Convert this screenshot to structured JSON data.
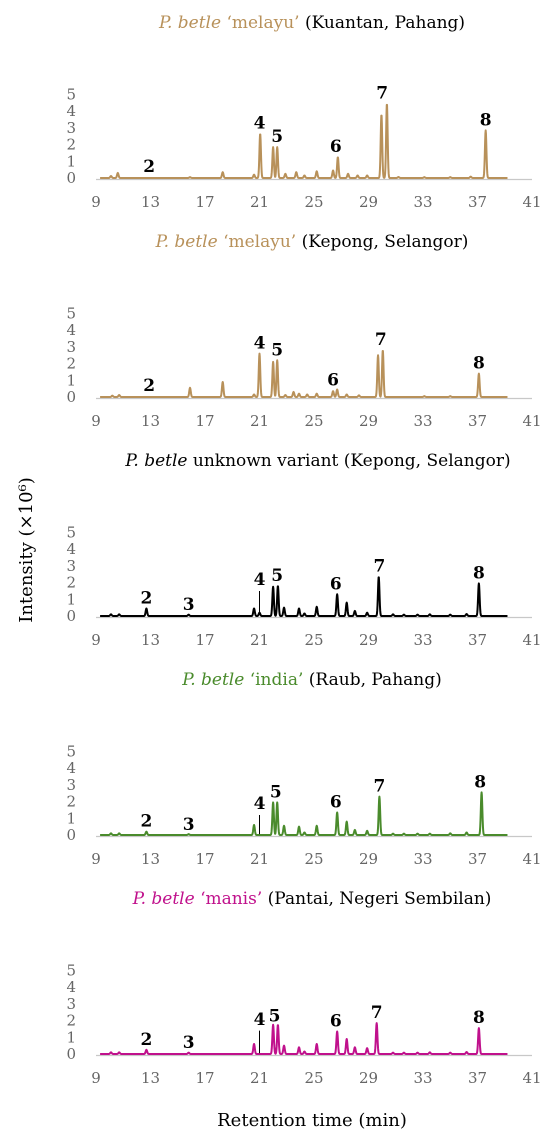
{
  "chart_data": {
    "type": "line",
    "xlabel": "Retention time (min)",
    "ylabel": "Intensity (×10⁶)",
    "xticks": [
      9,
      13,
      17,
      21,
      25,
      29,
      33,
      37,
      41
    ],
    "yticks": [
      0,
      1,
      2,
      3,
      4,
      5
    ],
    "xlim": [
      9,
      41
    ],
    "ylim": [
      0,
      5
    ],
    "panels": [
      {
        "title_species": "P. betle",
        "title_variant": "‘melayu’",
        "title_location": "(Kuantan, Pahang)",
        "color": "#B8915A",
        "species_color": "#B8915A",
        "x_end": 39.2,
        "peaks": [
          {
            "x": 10.1,
            "y": 0.12
          },
          {
            "x": 10.6,
            "y": 0.3
          },
          {
            "x": 15.9,
            "y": 0.05
          },
          {
            "x": 18.3,
            "y": 0.35
          },
          {
            "x": 20.6,
            "y": 0.2
          },
          {
            "x": 21.05,
            "y": 2.65
          },
          {
            "x": 22.0,
            "y": 1.85
          },
          {
            "x": 22.3,
            "y": 1.85
          },
          {
            "x": 22.9,
            "y": 0.25
          },
          {
            "x": 23.7,
            "y": 0.35
          },
          {
            "x": 24.3,
            "y": 0.15
          },
          {
            "x": 25.2,
            "y": 0.4
          },
          {
            "x": 26.4,
            "y": 0.45
          },
          {
            "x": 26.75,
            "y": 1.25
          },
          {
            "x": 27.5,
            "y": 0.25
          },
          {
            "x": 28.2,
            "y": 0.15
          },
          {
            "x": 28.9,
            "y": 0.15
          },
          {
            "x": 29.95,
            "y": 3.8
          },
          {
            "x": 30.35,
            "y": 4.45
          },
          {
            "x": 31.2,
            "y": 0.06
          },
          {
            "x": 33.1,
            "y": 0.05
          },
          {
            "x": 35.0,
            "y": 0.05
          },
          {
            "x": 36.5,
            "y": 0.08
          },
          {
            "x": 37.6,
            "y": 2.85
          }
        ],
        "labels": [
          {
            "text": "2",
            "x": 12.9,
            "y": 0.35
          },
          {
            "text": "4",
            "x": 21.0,
            "y": 2.95
          },
          {
            "text": "5",
            "x": 22.3,
            "y": 2.15
          },
          {
            "text": "6",
            "x": 26.6,
            "y": 1.55
          },
          {
            "text": "7",
            "x": 30.0,
            "y": 4.75
          },
          {
            "text": "8",
            "x": 37.6,
            "y": 3.15
          }
        ]
      },
      {
        "title_species": "P. betle",
        "title_variant": "‘melayu’",
        "title_location": "(Kepong, Selangor)",
        "color": "#B8915A",
        "species_color": "#B8915A",
        "x_end": 39.2,
        "peaks": [
          {
            "x": 10.2,
            "y": 0.08
          },
          {
            "x": 10.7,
            "y": 0.12
          },
          {
            "x": 15.9,
            "y": 0.55
          },
          {
            "x": 18.3,
            "y": 0.9
          },
          {
            "x": 20.6,
            "y": 0.15
          },
          {
            "x": 21.0,
            "y": 2.6
          },
          {
            "x": 22.0,
            "y": 2.1
          },
          {
            "x": 22.3,
            "y": 2.2
          },
          {
            "x": 22.9,
            "y": 0.12
          },
          {
            "x": 23.5,
            "y": 0.3
          },
          {
            "x": 23.9,
            "y": 0.2
          },
          {
            "x": 24.5,
            "y": 0.15
          },
          {
            "x": 25.2,
            "y": 0.2
          },
          {
            "x": 26.4,
            "y": 0.35
          },
          {
            "x": 26.7,
            "y": 0.45
          },
          {
            "x": 27.4,
            "y": 0.15
          },
          {
            "x": 28.3,
            "y": 0.1
          },
          {
            "x": 29.7,
            "y": 2.5
          },
          {
            "x": 30.05,
            "y": 2.8
          },
          {
            "x": 33.1,
            "y": 0.05
          },
          {
            "x": 35.0,
            "y": 0.05
          },
          {
            "x": 37.1,
            "y": 1.4
          }
        ],
        "labels": [
          {
            "text": "2",
            "x": 12.9,
            "y": 0.35
          },
          {
            "text": "4",
            "x": 21.0,
            "y": 2.9
          },
          {
            "text": "5",
            "x": 22.3,
            "y": 2.5
          },
          {
            "text": "6",
            "x": 26.4,
            "y": 0.7
          },
          {
            "text": "7",
            "x": 29.9,
            "y": 3.1
          },
          {
            "text": "8",
            "x": 37.1,
            "y": 1.7
          }
        ]
      },
      {
        "title_species": "P. betle",
        "title_variant": "unknown variant",
        "title_location": "(Kepong, Selangor)",
        "color": "#000000",
        "species_color": "#000000",
        "x_end": 39.2,
        "peaks": [
          {
            "x": 10.1,
            "y": 0.1
          },
          {
            "x": 10.7,
            "y": 0.1
          },
          {
            "x": 12.7,
            "y": 0.45
          },
          {
            "x": 15.8,
            "y": 0.08
          },
          {
            "x": 20.6,
            "y": 0.45
          },
          {
            "x": 21.0,
            "y": 0.2
          },
          {
            "x": 22.0,
            "y": 1.75
          },
          {
            "x": 22.35,
            "y": 1.8
          },
          {
            "x": 22.8,
            "y": 0.5
          },
          {
            "x": 23.9,
            "y": 0.45
          },
          {
            "x": 24.3,
            "y": 0.15
          },
          {
            "x": 25.2,
            "y": 0.55
          },
          {
            "x": 26.7,
            "y": 1.3
          },
          {
            "x": 27.4,
            "y": 0.8
          },
          {
            "x": 28.0,
            "y": 0.3
          },
          {
            "x": 28.9,
            "y": 0.2
          },
          {
            "x": 29.75,
            "y": 2.35
          },
          {
            "x": 30.8,
            "y": 0.1
          },
          {
            "x": 31.6,
            "y": 0.08
          },
          {
            "x": 32.6,
            "y": 0.08
          },
          {
            "x": 33.5,
            "y": 0.1
          },
          {
            "x": 35.0,
            "y": 0.08
          },
          {
            "x": 36.2,
            "y": 0.12
          },
          {
            "x": 37.1,
            "y": 1.95
          }
        ],
        "labels": [
          {
            "text": "2",
            "x": 12.7,
            "y": 0.75
          },
          {
            "text": "3",
            "x": 15.8,
            "y": 0.35
          },
          {
            "text": "4",
            "x": 21.0,
            "y": 1.85
          },
          {
            "text": "5",
            "x": 22.3,
            "y": 2.1
          },
          {
            "text": "6",
            "x": 26.6,
            "y": 1.6
          },
          {
            "text": "7",
            "x": 29.8,
            "y": 2.65
          },
          {
            "text": "8",
            "x": 37.1,
            "y": 2.25
          }
        ],
        "leaders": [
          {
            "x": 21.0,
            "y1": 0.05,
            "y2": 1.5
          }
        ]
      },
      {
        "title_species": "P. betle",
        "title_variant": "‘india’",
        "title_location": "(Raub, Pahang)",
        "color": "#4A8B2C",
        "species_color": "#4A8B2C",
        "x_end": 39.2,
        "peaks": [
          {
            "x": 10.1,
            "y": 0.1
          },
          {
            "x": 10.7,
            "y": 0.1
          },
          {
            "x": 12.7,
            "y": 0.2
          },
          {
            "x": 15.8,
            "y": 0.05
          },
          {
            "x": 20.6,
            "y": 0.6
          },
          {
            "x": 22.0,
            "y": 1.95
          },
          {
            "x": 22.3,
            "y": 1.95
          },
          {
            "x": 22.8,
            "y": 0.55
          },
          {
            "x": 23.9,
            "y": 0.5
          },
          {
            "x": 24.3,
            "y": 0.15
          },
          {
            "x": 25.2,
            "y": 0.55
          },
          {
            "x": 26.7,
            "y": 1.35
          },
          {
            "x": 27.4,
            "y": 0.8
          },
          {
            "x": 28.0,
            "y": 0.3
          },
          {
            "x": 28.9,
            "y": 0.25
          },
          {
            "x": 29.8,
            "y": 2.3
          },
          {
            "x": 30.8,
            "y": 0.08
          },
          {
            "x": 31.6,
            "y": 0.08
          },
          {
            "x": 32.6,
            "y": 0.08
          },
          {
            "x": 33.5,
            "y": 0.08
          },
          {
            "x": 35.0,
            "y": 0.1
          },
          {
            "x": 36.2,
            "y": 0.15
          },
          {
            "x": 37.3,
            "y": 2.55
          }
        ],
        "labels": [
          {
            "text": "2",
            "x": 12.7,
            "y": 0.5
          },
          {
            "text": "3",
            "x": 15.8,
            "y": 0.3
          },
          {
            "text": "4",
            "x": 21.0,
            "y": 1.55
          },
          {
            "text": "5",
            "x": 22.2,
            "y": 2.25
          },
          {
            "text": "6",
            "x": 26.6,
            "y": 1.65
          },
          {
            "text": "7",
            "x": 29.8,
            "y": 2.6
          },
          {
            "text": "8",
            "x": 37.2,
            "y": 2.85
          }
        ],
        "leaders": [
          {
            "x": 21.0,
            "y1": 0.05,
            "y2": 1.2
          }
        ]
      },
      {
        "title_species": "P. betle",
        "title_variant": "‘manis’",
        "title_location": "(Pantai, Negeri Sembilan)",
        "color": "#C0118C",
        "species_color": "#C0118C",
        "x_end": 39.2,
        "peaks": [
          {
            "x": 10.1,
            "y": 0.1
          },
          {
            "x": 10.7,
            "y": 0.1
          },
          {
            "x": 12.7,
            "y": 0.25
          },
          {
            "x": 15.8,
            "y": 0.08
          },
          {
            "x": 20.6,
            "y": 0.6
          },
          {
            "x": 22.0,
            "y": 1.75
          },
          {
            "x": 22.35,
            "y": 1.75
          },
          {
            "x": 22.8,
            "y": 0.5
          },
          {
            "x": 23.9,
            "y": 0.4
          },
          {
            "x": 24.3,
            "y": 0.15
          },
          {
            "x": 25.2,
            "y": 0.6
          },
          {
            "x": 26.7,
            "y": 1.35
          },
          {
            "x": 27.4,
            "y": 0.9
          },
          {
            "x": 28.0,
            "y": 0.4
          },
          {
            "x": 28.9,
            "y": 0.35
          },
          {
            "x": 29.6,
            "y": 1.85
          },
          {
            "x": 30.8,
            "y": 0.08
          },
          {
            "x": 31.6,
            "y": 0.08
          },
          {
            "x": 32.6,
            "y": 0.08
          },
          {
            "x": 33.5,
            "y": 0.1
          },
          {
            "x": 35.0,
            "y": 0.08
          },
          {
            "x": 36.2,
            "y": 0.12
          },
          {
            "x": 37.1,
            "y": 1.55
          }
        ],
        "labels": [
          {
            "text": "2",
            "x": 12.7,
            "y": 0.55
          },
          {
            "text": "3",
            "x": 15.8,
            "y": 0.35
          },
          {
            "text": "4",
            "x": 21.0,
            "y": 1.75
          },
          {
            "text": "5",
            "x": 22.1,
            "y": 1.95
          },
          {
            "text": "6",
            "x": 26.6,
            "y": 1.65
          },
          {
            "text": "7",
            "x": 29.6,
            "y": 2.15
          },
          {
            "text": "8",
            "x": 37.1,
            "y": 1.85
          }
        ],
        "leaders": [
          {
            "x": 21.0,
            "y1": 0.05,
            "y2": 1.4
          }
        ]
      }
    ]
  }
}
